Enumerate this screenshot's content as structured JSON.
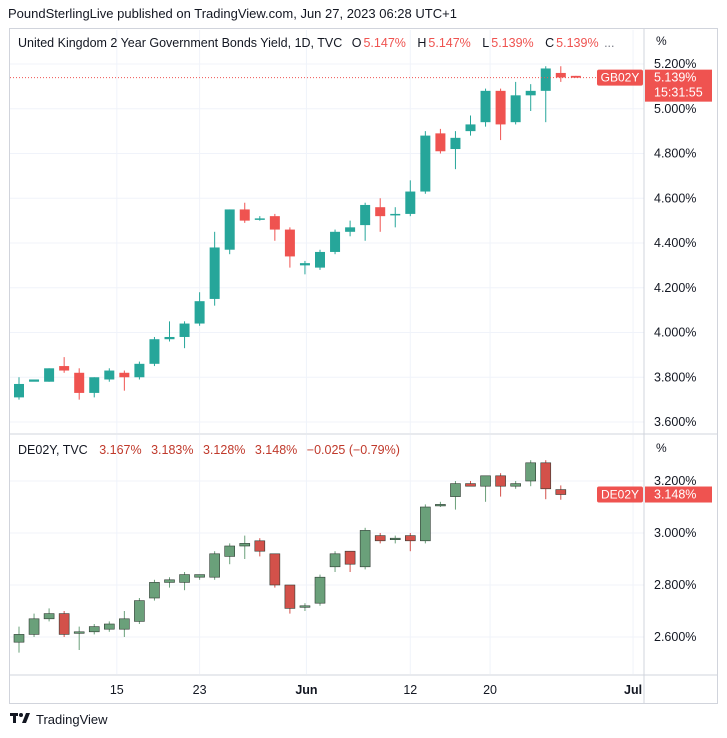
{
  "header": {
    "text": "PoundSterlingLive published on TradingView.com, Jun 27, 2023 06:28 UTC+1"
  },
  "footer": {
    "brand": "TradingView"
  },
  "colors": {
    "up": "#26a69a",
    "down": "#ef5350",
    "up2": "#6aa07a",
    "down2": "#d3514a",
    "grid": "#f0f3fa",
    "border": "#d1d4dc"
  },
  "top_legend": {
    "title": "United Kingdom 2 Year Government Bonds Yield, 1D, TVC",
    "o_label": "O",
    "o": "5.147%",
    "h_label": "H",
    "h": "5.147%",
    "l_label": "L",
    "l": "5.139%",
    "c_label": "C",
    "c": "5.139%",
    "more": "..."
  },
  "bottom_legend": {
    "title": "DE02Y, TVC",
    "o": "3.167%",
    "h": "3.183%",
    "l": "3.128%",
    "c": "3.148%",
    "chg": "−0.025 (−0.79%)"
  },
  "top_unit": "%",
  "bottom_unit": "%",
  "chart_data": [
    {
      "type": "candlestick",
      "title": "United Kingdom 2 Year Government Bonds Yield, 1D, TVC",
      "symbol": "GB02Y",
      "last_value": "5.139%",
      "countdown": "15:31:55",
      "y_ticks": [
        "5.200%",
        "5.000%",
        "4.800%",
        "4.600%",
        "4.400%",
        "4.200%",
        "4.000%",
        "3.800%",
        "3.600%"
      ],
      "y_tick_values": [
        5.2,
        5.0,
        4.8,
        4.6,
        4.4,
        4.2,
        4.0,
        3.8,
        3.6
      ],
      "ylim": [
        3.56,
        5.3
      ],
      "candles": [
        {
          "o": 3.71,
          "h": 3.8,
          "l": 3.7,
          "c": 3.77
        },
        {
          "o": 3.78,
          "h": 3.78,
          "l": 3.78,
          "c": 3.79
        },
        {
          "o": 3.78,
          "h": 3.84,
          "l": 3.78,
          "c": 3.84
        },
        {
          "o": 3.85,
          "h": 3.89,
          "l": 3.82,
          "c": 3.83
        },
        {
          "o": 3.82,
          "h": 3.84,
          "l": 3.7,
          "c": 3.73
        },
        {
          "o": 3.73,
          "h": 3.8,
          "l": 3.71,
          "c": 3.8
        },
        {
          "o": 3.79,
          "h": 3.84,
          "l": 3.78,
          "c": 3.83
        },
        {
          "o": 3.82,
          "h": 3.83,
          "l": 3.74,
          "c": 3.8
        },
        {
          "o": 3.8,
          "h": 3.87,
          "l": 3.79,
          "c": 3.86
        },
        {
          "o": 3.86,
          "h": 3.98,
          "l": 3.85,
          "c": 3.97
        },
        {
          "o": 3.97,
          "h": 4.05,
          "l": 3.96,
          "c": 3.98
        },
        {
          "o": 3.98,
          "h": 4.05,
          "l": 3.93,
          "c": 4.04
        },
        {
          "o": 4.04,
          "h": 4.18,
          "l": 4.03,
          "c": 4.14
        },
        {
          "o": 4.15,
          "h": 4.45,
          "l": 4.12,
          "c": 4.38
        },
        {
          "o": 4.37,
          "h": 4.55,
          "l": 4.35,
          "c": 4.55
        },
        {
          "o": 4.55,
          "h": 4.58,
          "l": 4.49,
          "c": 4.5
        },
        {
          "o": 4.51,
          "h": 4.52,
          "l": 4.5,
          "c": 4.51
        },
        {
          "o": 4.52,
          "h": 4.53,
          "l": 4.41,
          "c": 4.46
        },
        {
          "o": 4.46,
          "h": 4.47,
          "l": 4.29,
          "c": 4.34
        },
        {
          "o": 4.3,
          "h": 4.32,
          "l": 4.26,
          "c": 4.31
        },
        {
          "o": 4.29,
          "h": 4.37,
          "l": 4.28,
          "c": 4.36
        },
        {
          "o": 4.36,
          "h": 4.46,
          "l": 4.35,
          "c": 4.45
        },
        {
          "o": 4.45,
          "h": 4.5,
          "l": 4.43,
          "c": 4.47
        },
        {
          "o": 4.48,
          "h": 4.58,
          "l": 4.41,
          "c": 4.57
        },
        {
          "o": 4.56,
          "h": 4.6,
          "l": 4.45,
          "c": 4.52
        },
        {
          "o": 4.53,
          "h": 4.56,
          "l": 4.47,
          "c": 4.53
        },
        {
          "o": 4.53,
          "h": 4.68,
          "l": 4.52,
          "c": 4.63
        },
        {
          "o": 4.63,
          "h": 4.9,
          "l": 4.62,
          "c": 4.88
        },
        {
          "o": 4.89,
          "h": 4.91,
          "l": 4.8,
          "c": 4.81
        },
        {
          "o": 4.82,
          "h": 4.9,
          "l": 4.73,
          "c": 4.87
        },
        {
          "o": 4.9,
          "h": 4.97,
          "l": 4.88,
          "c": 4.93
        },
        {
          "o": 4.94,
          "h": 5.09,
          "l": 4.92,
          "c": 5.08
        },
        {
          "o": 5.08,
          "h": 5.09,
          "l": 4.86,
          "c": 4.93
        },
        {
          "o": 4.94,
          "h": 5.12,
          "l": 4.93,
          "c": 5.06
        },
        {
          "o": 5.06,
          "h": 5.11,
          "l": 4.99,
          "c": 5.08
        },
        {
          "o": 5.08,
          "h": 5.19,
          "l": 4.94,
          "c": 5.18
        },
        {
          "o": 5.16,
          "h": 5.19,
          "l": 5.12,
          "c": 5.14
        },
        {
          "o": 5.147,
          "h": 5.147,
          "l": 5.139,
          "c": 5.139
        }
      ]
    },
    {
      "type": "candlestick",
      "title": "DE02Y, TVC",
      "symbol": "DE02Y",
      "last_value": "3.148%",
      "y_ticks": [
        "3.200%",
        "3.000%",
        "2.800%",
        "2.600%"
      ],
      "y_tick_values": [
        3.2,
        3.0,
        2.8,
        2.6
      ],
      "ylim": [
        2.47,
        3.3
      ],
      "x_ticks": [
        "15",
        "23",
        "Jun",
        "12",
        "20",
        "Jul"
      ],
      "x_tick_index": [
        6.5,
        12,
        19.1,
        26,
        31.3,
        40.8
      ],
      "candles": [
        {
          "o": 2.58,
          "h": 2.64,
          "l": 2.54,
          "c": 2.61
        },
        {
          "o": 2.61,
          "h": 2.69,
          "l": 2.6,
          "c": 2.67
        },
        {
          "o": 2.67,
          "h": 2.71,
          "l": 2.66,
          "c": 2.69
        },
        {
          "o": 2.69,
          "h": 2.7,
          "l": 2.6,
          "c": 2.61
        },
        {
          "o": 2.62,
          "h": 2.64,
          "l": 2.55,
          "c": 2.62
        },
        {
          "o": 2.62,
          "h": 2.65,
          "l": 2.61,
          "c": 2.64
        },
        {
          "o": 2.63,
          "h": 2.66,
          "l": 2.62,
          "c": 2.65
        },
        {
          "o": 2.63,
          "h": 2.7,
          "l": 2.6,
          "c": 2.67
        },
        {
          "o": 2.66,
          "h": 2.75,
          "l": 2.65,
          "c": 2.74
        },
        {
          "o": 2.75,
          "h": 2.82,
          "l": 2.74,
          "c": 2.81
        },
        {
          "o": 2.81,
          "h": 2.83,
          "l": 2.79,
          "c": 2.82
        },
        {
          "o": 2.81,
          "h": 2.85,
          "l": 2.78,
          "c": 2.84
        },
        {
          "o": 2.83,
          "h": 2.84,
          "l": 2.82,
          "c": 2.84
        },
        {
          "o": 2.83,
          "h": 2.93,
          "l": 2.82,
          "c": 2.92
        },
        {
          "o": 2.91,
          "h": 2.96,
          "l": 2.88,
          "c": 2.95
        },
        {
          "o": 2.95,
          "h": 2.99,
          "l": 2.9,
          "c": 2.96
        },
        {
          "o": 2.97,
          "h": 2.98,
          "l": 2.91,
          "c": 2.93
        },
        {
          "o": 2.92,
          "h": 2.92,
          "l": 2.79,
          "c": 2.8
        },
        {
          "o": 2.8,
          "h": 2.8,
          "l": 2.69,
          "c": 2.71
        },
        {
          "o": 2.72,
          "h": 2.73,
          "l": 2.7,
          "c": 2.72
        },
        {
          "o": 2.73,
          "h": 2.84,
          "l": 2.72,
          "c": 2.83
        },
        {
          "o": 2.87,
          "h": 2.93,
          "l": 2.85,
          "c": 2.92
        },
        {
          "o": 2.93,
          "h": 2.93,
          "l": 2.85,
          "c": 2.88
        },
        {
          "o": 2.87,
          "h": 3.02,
          "l": 2.86,
          "c": 3.01
        },
        {
          "o": 2.99,
          "h": 3.0,
          "l": 2.96,
          "c": 2.97
        },
        {
          "o": 2.98,
          "h": 2.99,
          "l": 2.96,
          "c": 2.98
        },
        {
          "o": 2.99,
          "h": 3.0,
          "l": 2.93,
          "c": 2.97
        },
        {
          "o": 2.97,
          "h": 3.11,
          "l": 2.96,
          "c": 3.1
        },
        {
          "o": 3.11,
          "h": 3.12,
          "l": 3.1,
          "c": 3.11
        },
        {
          "o": 3.14,
          "h": 3.2,
          "l": 3.09,
          "c": 3.19
        },
        {
          "o": 3.19,
          "h": 3.2,
          "l": 3.18,
          "c": 3.18
        },
        {
          "o": 3.18,
          "h": 3.22,
          "l": 3.12,
          "c": 3.22
        },
        {
          "o": 3.22,
          "h": 3.23,
          "l": 3.14,
          "c": 3.18
        },
        {
          "o": 3.18,
          "h": 3.2,
          "l": 3.17,
          "c": 3.19
        },
        {
          "o": 3.2,
          "h": 3.28,
          "l": 3.18,
          "c": 3.27
        },
        {
          "o": 3.27,
          "h": 3.28,
          "l": 3.13,
          "c": 3.17
        },
        {
          "o": 3.167,
          "h": 3.183,
          "l": 3.128,
          "c": 3.148
        }
      ]
    }
  ]
}
